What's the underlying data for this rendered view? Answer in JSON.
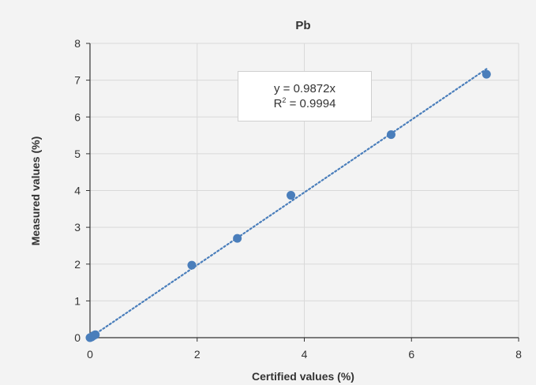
{
  "chart_data": {
    "type": "scatter",
    "title": "Pb",
    "xlabel": "Certified values (%)",
    "ylabel": "Measured values (%)",
    "xlim": [
      0,
      8
    ],
    "ylim": [
      0,
      8
    ],
    "xticks": [
      "0",
      "2",
      "4",
      "6",
      "8"
    ],
    "yticks": [
      "0",
      "1",
      "2",
      "3",
      "4",
      "5",
      "6",
      "7",
      "8"
    ],
    "grid": true,
    "series": [
      {
        "color": "#4a7ebb",
        "points": [
          {
            "x": 0.0,
            "y": 0.0
          },
          {
            "x": 0.03,
            "y": 0.02
          },
          {
            "x": 0.06,
            "y": 0.05
          },
          {
            "x": 0.1,
            "y": 0.08
          },
          {
            "x": 1.9,
            "y": 1.97
          },
          {
            "x": 2.75,
            "y": 2.7
          },
          {
            "x": 3.75,
            "y": 3.87
          },
          {
            "x": 5.62,
            "y": 5.52
          },
          {
            "x": 7.4,
            "y": 7.16
          }
        ]
      }
    ],
    "trendline": {
      "type": "linear-through-origin",
      "slope": 0.9872,
      "style": "dotted",
      "color": "#4a7ebb"
    },
    "annotation": {
      "line1": "y = 0.9872x",
      "line2_prefix": "R",
      "line2_sup": "2",
      "line2_suffix": " = 0.9994"
    }
  }
}
